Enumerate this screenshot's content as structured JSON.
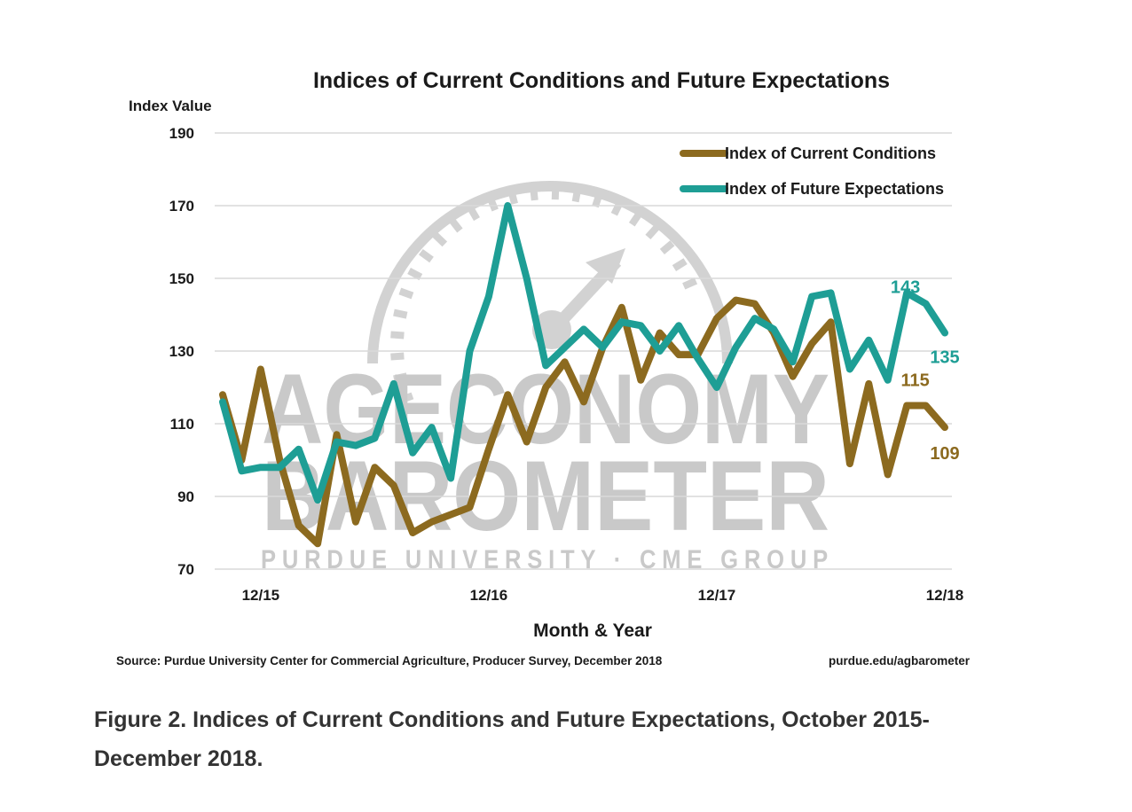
{
  "chart_data": {
    "type": "line",
    "title": "Indices of Current Conditions and Future Expectations",
    "ylabel": "Index Value",
    "xlabel": "Month & Year",
    "ylim": [
      70,
      190
    ],
    "yticks": [
      70,
      90,
      110,
      130,
      150,
      170,
      190
    ],
    "x_tick_labels": [
      {
        "label": "12/15",
        "index": 2
      },
      {
        "label": "12/16",
        "index": 14
      },
      {
        "label": "12/17",
        "index": 26
      },
      {
        "label": "12/18",
        "index": 38
      }
    ],
    "grid": true,
    "legend_position": "top-right",
    "series": [
      {
        "name": "Index of Current Conditions",
        "color": "#8c6a1f",
        "values": [
          118,
          100,
          125,
          100,
          82,
          77,
          107,
          83,
          98,
          93,
          80,
          83,
          85,
          87,
          103,
          118,
          105,
          120,
          127,
          116,
          131,
          142,
          122,
          135,
          129,
          129,
          139,
          144,
          143,
          135,
          123,
          132,
          138,
          99,
          121,
          96,
          115,
          115,
          109
        ]
      },
      {
        "name": "Index of Future Expectations",
        "color": "#1e9e95",
        "values": [
          116,
          97,
          98,
          98,
          103,
          89,
          105,
          104,
          106,
          121,
          102,
          109,
          95,
          130,
          145,
          170,
          150,
          126,
          131,
          136,
          131,
          138,
          137,
          130,
          137,
          128,
          120,
          131,
          139,
          136,
          127,
          145,
          146,
          125,
          133,
          122,
          146,
          143,
          135
        ]
      }
    ],
    "annotations": [
      {
        "text": "143",
        "series": 1,
        "index": 37
      },
      {
        "text": "135",
        "series": 1,
        "index": 38
      },
      {
        "text": "115",
        "series": 0,
        "index": 37
      },
      {
        "text": "109",
        "series": 0,
        "index": 38
      }
    ],
    "watermark": {
      "line1": "AGECONOMY",
      "line2": "BAROMETER",
      "line3": "PURDUE UNIVERSITY  ·  CME GROUP"
    },
    "source": "Source: Purdue University Center for Commercial Agriculture, Producer Survey, December 2018",
    "website": "purdue.edu/agbarometer"
  },
  "caption": "Figure 2. Indices of Current Conditions and Future Expectations, October 2015-December 2018."
}
